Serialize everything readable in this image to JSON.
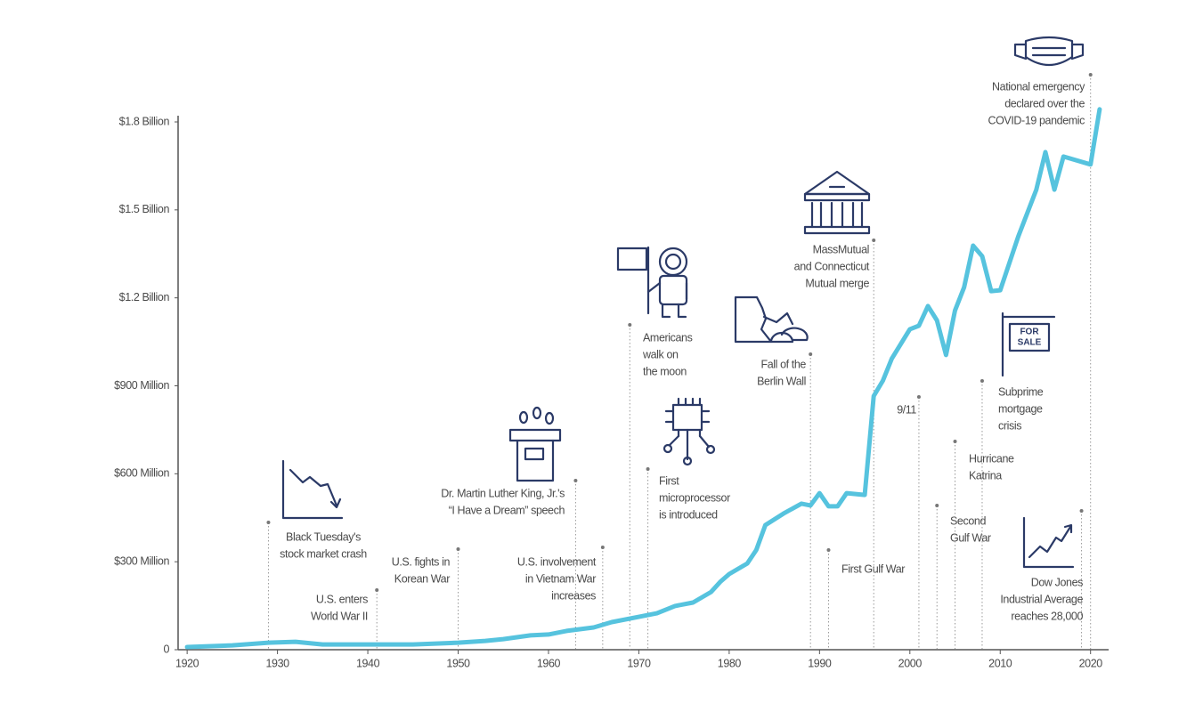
{
  "chart_data": {
    "type": "line",
    "x": [
      1920,
      1925,
      1929,
      1932,
      1935,
      1940,
      1945,
      1950,
      1953,
      1955,
      1958,
      1960,
      1962,
      1965,
      1967,
      1970,
      1972,
      1974,
      1976,
      1978,
      1979,
      1980,
      1982,
      1983,
      1984,
      1986,
      1988,
      1989,
      1990,
      1991,
      1992,
      1993,
      1995,
      1996,
      1997,
      1998,
      2000,
      2001,
      2002,
      2003,
      2004,
      2005,
      2006,
      2007,
      2008,
      2009,
      2010,
      2012,
      2014,
      2015,
      2016,
      2017,
      2020,
      2021
    ],
    "series": [
      {
        "color": "#56c3de",
        "values": [
          9,
          15,
          24,
          27,
          18,
          18,
          18,
          24,
          30,
          36,
          49,
          52,
          64,
          76,
          94,
          112,
          124,
          149,
          161,
          197,
          231,
          258,
          294,
          340,
          425,
          464,
          498,
          492,
          534,
          489,
          489,
          534,
          528,
          865,
          917,
          993,
          1093,
          1105,
          1172,
          1123,
          1005,
          1157,
          1236,
          1378,
          1342,
          1223,
          1226,
          1409,
          1569,
          1697,
          1569,
          1682,
          1655,
          1843
        ]
      }
    ],
    "xlim": [
      1919,
      2022
    ],
    "xticks": [
      1920,
      1930,
      1940,
      1950,
      1960,
      1970,
      1980,
      1990,
      2000,
      2010,
      2020
    ],
    "ylim": [
      0,
      1800
    ],
    "yticks": [
      0,
      {
        "value": 300,
        "label": "$300 Million"
      },
      {
        "value": 600,
        "label": "$600 Million"
      },
      {
        "value": 900,
        "label": "$900 Million"
      },
      {
        "value": 1200,
        "label": "$1.2 Billion"
      },
      {
        "value": 1500,
        "label": "$1.5 Billion"
      },
      {
        "value": 1800,
        "label": "$1.8 Billion"
      }
    ],
    "annotations": [
      {
        "x": 1929,
        "lines": [
          "Black Tuesday's",
          "stock market crash"
        ]
      },
      {
        "x": 1941,
        "lines": [
          "U.S. enters",
          "World War II"
        ]
      },
      {
        "x": 1950,
        "lines": [
          "U.S. fights in",
          "Korean War"
        ]
      },
      {
        "x": 1963,
        "lines": [
          "Dr. Martin Luther King, Jr.'s",
          "“I Have a Dream” speech"
        ]
      },
      {
        "x": 1966,
        "lines": [
          "U.S. involvement",
          "in Vietnam War",
          "increases"
        ]
      },
      {
        "x": 1969,
        "lines": [
          "Americans",
          "walk on",
          "the moon"
        ]
      },
      {
        "x": 1971,
        "lines": [
          "First",
          "microprocessor",
          "is introduced"
        ]
      },
      {
        "x": 1989,
        "lines": [
          "Fall of the",
          "Berlin Wall"
        ]
      },
      {
        "x": 1991,
        "lines": [
          "First Gulf War"
        ]
      },
      {
        "x": 1996,
        "lines": [
          "MassMutual",
          "and Connecticut",
          "Mutual merge"
        ]
      },
      {
        "x": 2001,
        "lines": [
          "9/11"
        ]
      },
      {
        "x": 2003,
        "lines": [
          "Second",
          "Gulf War"
        ]
      },
      {
        "x": 2005,
        "lines": [
          "Hurricane",
          "Katrina"
        ]
      },
      {
        "x": 2008,
        "lines": [
          "Subprime",
          "mortgage",
          "crisis"
        ]
      },
      {
        "x": 2019,
        "lines": [
          "Dow Jones",
          "Industrial Average",
          "reaches 28,000"
        ]
      },
      {
        "x": 2020,
        "lines": [
          "National emergency",
          "declared over the",
          "COVID-19 pandemic"
        ]
      }
    ],
    "icon_texts": {
      "for_sale": [
        "FOR",
        "SALE"
      ]
    }
  }
}
